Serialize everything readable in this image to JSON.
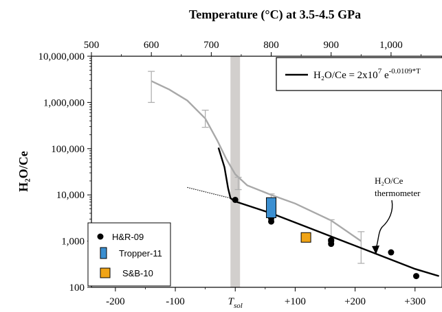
{
  "chart_data": {
    "type": "scatter",
    "title": "Temperature (°C) at 3.5-4.5 GPa",
    "ylabel": "H₂O/Ce",
    "y_scale": "log",
    "ylim": [
      100,
      10000000
    ],
    "xlim": [
      -240,
      345
    ],
    "top_xlim": [
      500,
      1085
    ],
    "y_ticks": [
      "100",
      "1,000",
      "10,000",
      "100,000",
      "1,000,000",
      "10,000,000"
    ],
    "x_ticks": [
      {
        "value": -200,
        "label": "-200"
      },
      {
        "value": -100,
        "label": "-100"
      },
      {
        "value": 0,
        "label": "T",
        "sub": "sol"
      },
      {
        "value": 100,
        "label": "+100"
      },
      {
        "value": 200,
        "label": "+200"
      },
      {
        "value": 300,
        "label": "+300"
      }
    ],
    "top_ticks": [
      {
        "value": 500,
        "label": "500"
      },
      {
        "value": 600,
        "label": "600"
      },
      {
        "value": 700,
        "label": "700"
      },
      {
        "value": 800,
        "label": "800"
      },
      {
        "value": 900,
        "label": "900"
      },
      {
        "value": 1000,
        "label": "1,000"
      }
    ],
    "solidus_band": [
      -8,
      8
    ],
    "series": [
      {
        "name": "H&R-09",
        "marker": "circle",
        "color": "#000000",
        "points": [
          [
            0,
            7800
          ],
          [
            60,
            2650
          ],
          [
            60,
            3100
          ],
          [
            160,
            870
          ],
          [
            160,
            1000
          ],
          [
            160,
            1050
          ],
          [
            260,
            570
          ],
          [
            302,
            175
          ]
        ]
      },
      {
        "name": "Tropper-11",
        "marker": "rect",
        "color": "#3b8fd1",
        "boxes": [
          {
            "x": 60,
            "y_low": 3200,
            "y_high": 8700
          }
        ]
      },
      {
        "name": "S&B-10",
        "marker": "square",
        "color": "#f0a416",
        "points": [
          [
            118,
            1200
          ]
        ]
      }
    ],
    "gray_curve": {
      "color": "#a8a8a8",
      "points": [
        [
          -140,
          2900000
        ],
        [
          -110,
          1900000
        ],
        [
          -80,
          1100000
        ],
        [
          -50,
          450000
        ],
        [
          -30,
          150000
        ],
        [
          -15,
          60000
        ],
        [
          0,
          28000
        ],
        [
          20,
          16000
        ],
        [
          60,
          10000
        ],
        [
          100,
          6500
        ],
        [
          160,
          2800
        ],
        [
          210,
          1000
        ]
      ],
      "error_bars": [
        {
          "x": -140,
          "low": 1000000,
          "high": 4700000
        },
        {
          "x": -50,
          "low": 290000,
          "high": 680000
        },
        {
          "x": 5,
          "low": 13000,
          "high": 24000
        },
        {
          "x": 60,
          "low": 7000,
          "high": 10500
        },
        {
          "x": 160,
          "low": 1100,
          "high": 2900
        },
        {
          "x": 210,
          "low": 330,
          "high": 1600
        }
      ]
    },
    "fit_line": {
      "label_main": "H₂O/Ce = 2x10",
      "label_sup": "7",
      "label_e": " e",
      "label_exp": "-0.0109*T",
      "points": [
        [
          -28,
          105000
        ],
        [
          -18,
          40000
        ],
        [
          -12,
          14000
        ],
        [
          -8,
          8500
        ],
        [
          0,
          7200
        ],
        [
          60,
          4000
        ],
        [
          120,
          2000
        ],
        [
          180,
          1000
        ],
        [
          240,
          500
        ],
        [
          300,
          250
        ],
        [
          340,
          175
        ]
      ],
      "extrapolation": [
        [
          -80,
          14500
        ],
        [
          -8,
          8500
        ]
      ]
    },
    "annotation": {
      "line1": "H₂O/Ce",
      "line2": "thermometer",
      "points_to": [
        240,
        470
      ]
    },
    "legend_position": "bottom-left"
  }
}
